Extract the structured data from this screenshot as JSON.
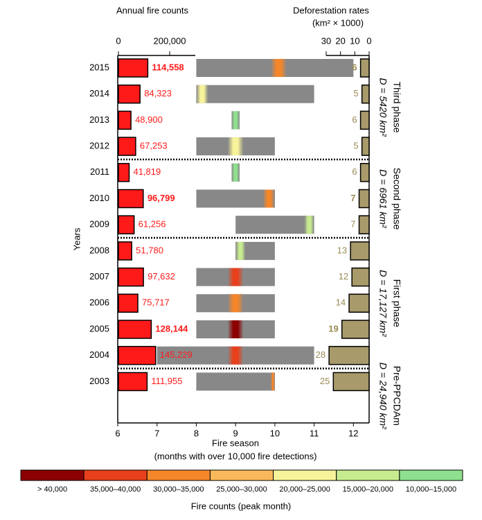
{
  "chart_data": {
    "type": "fire-season",
    "fire_axis_title": "Annual fire counts",
    "deforestation_axis_title": "Deforestation rates",
    "deforestation_axis_unit": "(km² × 1000)",
    "y_label": "Years",
    "x_label": "Fire season",
    "x_sublabel": "(months with over 10,000 fire detections)",
    "categories": [
      "2015",
      "2014",
      "2013",
      "2012",
      "2011",
      "2010",
      "2009",
      "2008",
      "2007",
      "2006",
      "2005",
      "2004",
      "2003"
    ],
    "highlight": [
      true,
      false,
      false,
      false,
      false,
      true,
      false,
      false,
      false,
      false,
      true,
      false,
      false
    ],
    "fire": {
      "color": "#ff1a1a",
      "values": [
        114558,
        84323,
        48900,
        67253,
        41819,
        96799,
        61256,
        51780,
        97632,
        75717,
        128144,
        145229,
        111955
      ],
      "value_labels": [
        "114,558",
        "84,323",
        "48,900",
        "67,253",
        "41,819",
        "96,799",
        "61,256",
        "51,780",
        "97,632",
        "75,717",
        "128,144",
        "145,229",
        "111,955"
      ],
      "xlim": [
        0,
        300000
      ],
      "xticks": [
        0,
        {
          "value": 200000,
          "label": "200,000"
        }
      ]
    },
    "season": {
      "color": "#888888",
      "start": [
        8,
        8,
        8.9,
        8,
        8.9,
        8,
        9,
        9,
        8,
        8,
        8,
        7,
        8
      ],
      "end": [
        12,
        11,
        9.1,
        10,
        9.1,
        10,
        11,
        10,
        10,
        10,
        10,
        11,
        10
      ],
      "peak": [
        10.1,
        8.1,
        9.05,
        9.0,
        9.05,
        9.9,
        10.95,
        9.05,
        9.0,
        9.0,
        9.0,
        9.0,
        10.1
      ],
      "peak_color": [
        "#f5862a",
        "#f7f39a",
        "#8ee08e",
        "#f7f39a",
        "#8ee08e",
        "#f5862a",
        "#c7eb8f",
        "#c7eb8f",
        "#e8401c",
        "#f5862a",
        "#8b0000",
        "#e8401c",
        "#f5862a"
      ],
      "xlim": [
        6,
        12.4
      ],
      "xticks": [
        6,
        7,
        8,
        9,
        10,
        11,
        12
      ]
    },
    "deforestation": {
      "color": "#a89a6a",
      "label_color": "#9a8a55",
      "values": [
        6,
        5,
        6,
        5,
        6,
        7,
        7,
        13,
        12,
        14,
        19,
        28,
        25
      ],
      "xlim": [
        0,
        30
      ],
      "xticks": [
        30,
        20,
        10,
        0
      ]
    },
    "phases": [
      {
        "name": "Third phase",
        "area": "D = 5420 km²",
        "from": "2015",
        "to": "2012"
      },
      {
        "name": "Second phase",
        "area": "D = 6961 km²",
        "from": "2011",
        "to": "2009"
      },
      {
        "name": "First phase",
        "area": "D = 17,127 km²",
        "from": "2008",
        "to": "2004"
      },
      {
        "name": "Pre-PPCDAm",
        "area": "D = 24,940 km²",
        "from": "2003",
        "to": "2003"
      }
    ],
    "legend": {
      "title": "Fire counts (peak month)",
      "bins": [
        {
          "label": "> 40,000",
          "color": "#8b0000"
        },
        {
          "label": "35,000–40,000",
          "color": "#e8401c"
        },
        {
          "label": "30,000–35,000",
          "color": "#f5862a"
        },
        {
          "label": "25,000–30,000",
          "color": "#f9b95a"
        },
        {
          "label": "20,000–25,000",
          "color": "#f7f39a"
        },
        {
          "label": "15,000–20,000",
          "color": "#c7eb8f"
        },
        {
          "label": "10,000–15,000",
          "color": "#8ee08e"
        }
      ]
    }
  }
}
